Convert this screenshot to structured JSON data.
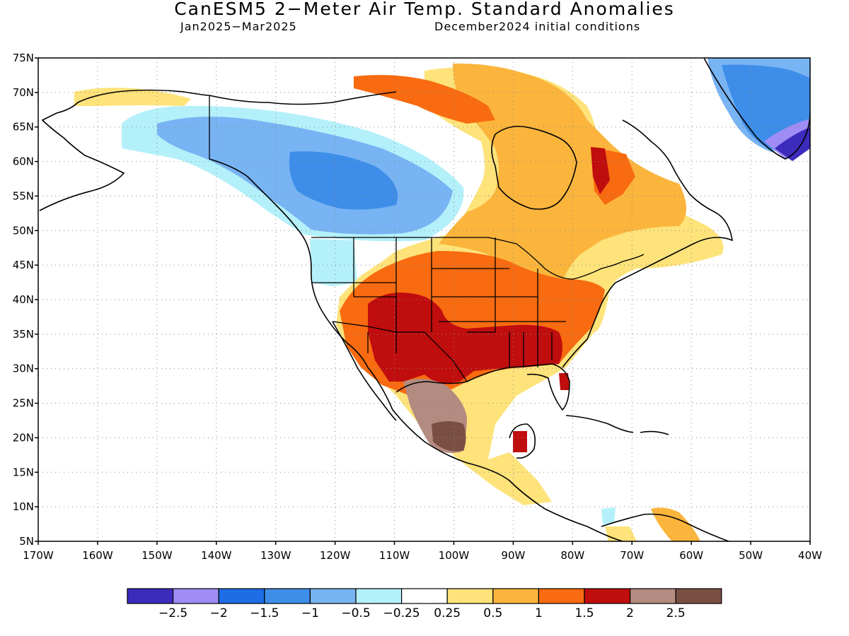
{
  "title": "CanESM5 2−Meter Air Temp. Standard Anomalies",
  "period": "Jan2025−Mar2025",
  "init": "December2024 initial conditions",
  "lat_labels": [
    "75N",
    "70N",
    "65N",
    "60N",
    "55N",
    "50N",
    "45N",
    "40N",
    "35N",
    "30N",
    "25N",
    "20N",
    "15N",
    "10N",
    "5N"
  ],
  "lon_labels": [
    "170W",
    "160W",
    "150W",
    "140W",
    "130W",
    "120W",
    "110W",
    "100W",
    "90W",
    "80W",
    "70W",
    "60W",
    "50W",
    "40W"
  ],
  "colorbar": {
    "colors": [
      "#3c2bbd",
      "#a08cf5",
      "#1f6de6",
      "#3e8ee9",
      "#78b4f3",
      "#b4f0fa",
      "#ffffff",
      "#fde37a",
      "#fbb53c",
      "#f86b10",
      "#c00d0d",
      "#b48b80",
      "#7a4f43"
    ],
    "labels": [
      "−2.5",
      "−2",
      "−1.5",
      "−1",
      "−0.5",
      "−0.25",
      "0.25",
      "0.5",
      "1",
      "1.5",
      "2",
      "2.5"
    ]
  }
}
